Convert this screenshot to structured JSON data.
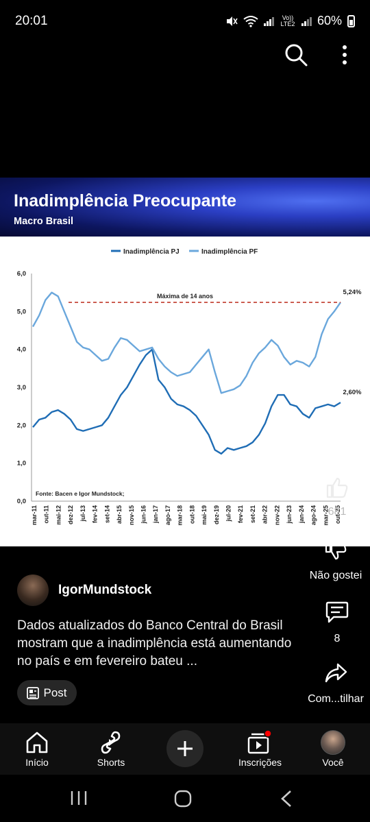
{
  "status_bar": {
    "time": "20:01",
    "network_label": "Vo)) LTE2",
    "battery": "60%",
    "icons": [
      "mute-icon",
      "wifi-icon",
      "signal-icon",
      "battery-icon"
    ]
  },
  "top_bar": {
    "icons": [
      "search-icon",
      "more-vert-icon"
    ]
  },
  "post_image": {
    "title": "Inadimplência Preocupante",
    "subtitle": "Macro Brasil",
    "colors": {
      "banner": "#0d1660",
      "pj": "#1f6db5",
      "pf": "#6aa7dc",
      "max_line": "#c0392b"
    }
  },
  "chart_data": {
    "type": "line",
    "legend_position": "top-center",
    "grid": false,
    "ylim": [
      0,
      6
    ],
    "y_ticks": [
      "0,0",
      "1,0",
      "2,0",
      "3,0",
      "4,0",
      "5,0",
      "6,0"
    ],
    "x_ticks": [
      "mar-11",
      "out-11",
      "mai-12",
      "dez-12",
      "jul-13",
      "fev-14",
      "set-14",
      "abr-15",
      "nov-15",
      "jun-16",
      "jan-17",
      "ago-17",
      "mar-18",
      "out-18",
      "mai-19",
      "dez-19",
      "jul-20",
      "fev-21",
      "set-21",
      "abr-22",
      "nov-22",
      "jun-23",
      "jan-24",
      "ago-24",
      "mar-25",
      "out-25"
    ],
    "annotation_max": "Máxima de 14 anos",
    "max_value": 5.24,
    "source": "Fonte: Bacen e Igor Mundstock;",
    "series": [
      {
        "name": "Inadimplência PJ",
        "end_label": "2,60%",
        "values": [
          1.95,
          2.15,
          2.2,
          2.35,
          2.4,
          2.3,
          2.15,
          1.9,
          1.85,
          1.9,
          1.95,
          2.0,
          2.2,
          2.5,
          2.8,
          3.0,
          3.3,
          3.6,
          3.85,
          4.0,
          3.2,
          3.0,
          2.7,
          2.55,
          2.5,
          2.4,
          2.25,
          2.0,
          1.75,
          1.35,
          1.25,
          1.4,
          1.35,
          1.4,
          1.45,
          1.55,
          1.75,
          2.05,
          2.5,
          2.8,
          2.8,
          2.55,
          2.5,
          2.3,
          2.2,
          2.45,
          2.5,
          2.55,
          2.5,
          2.6
        ]
      },
      {
        "name": "Inadimplência PF",
        "end_label": "5,24%",
        "values": [
          4.6,
          4.9,
          5.3,
          5.5,
          5.4,
          5.0,
          4.6,
          4.2,
          4.05,
          4.0,
          3.85,
          3.7,
          3.75,
          4.05,
          4.3,
          4.25,
          4.1,
          3.95,
          4.0,
          4.05,
          3.75,
          3.55,
          3.4,
          3.3,
          3.35,
          3.4,
          3.6,
          3.8,
          4.0,
          3.4,
          2.85,
          2.9,
          2.95,
          3.05,
          3.3,
          3.65,
          3.9,
          4.05,
          4.25,
          4.1,
          3.8,
          3.6,
          3.7,
          3.65,
          3.55,
          3.8,
          4.4,
          4.8,
          5.0,
          5.24
        ]
      }
    ]
  },
  "actions": {
    "like_count": "681",
    "dislike_label": "Não gostei",
    "comments_count": "8",
    "share_label": "Com...tilhar"
  },
  "channel": {
    "name": "IgorMundstock",
    "description": "Dados atualizados do Banco Central do Brasil mostram que a inadimplência está aumentando no país e em fevereiro bateu  ...",
    "chip_label": "Post"
  },
  "bottom_nav": {
    "items": [
      {
        "label": "Início",
        "icon": "home-icon"
      },
      {
        "label": "Shorts",
        "icon": "shorts-icon"
      },
      {
        "label": "",
        "icon": "create-plus-icon"
      },
      {
        "label": "Inscrições",
        "icon": "subscriptions-icon"
      },
      {
        "label": "Você",
        "icon": "profile-avatar-icon"
      }
    ]
  },
  "system_nav": {
    "icons": [
      "recents-icon",
      "home-circle-icon",
      "back-icon"
    ]
  }
}
